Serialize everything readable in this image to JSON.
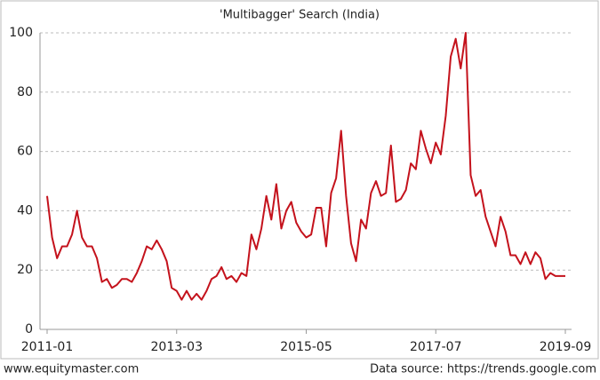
{
  "chart_data": {
    "type": "line",
    "title": "'Multibagger' Search (India)",
    "footer_left": "www.equitymaster.com",
    "footer_right": "Data source: https://trends.google.com",
    "categories": [
      "2011-01",
      null,
      null,
      null,
      null,
      null,
      null,
      null,
      null,
      null,
      null,
      null,
      null,
      null,
      null,
      null,
      null,
      null,
      null,
      null,
      null,
      null,
      null,
      null,
      null,
      null,
      "2013-03",
      null,
      null,
      null,
      null,
      null,
      null,
      null,
      null,
      null,
      null,
      null,
      null,
      null,
      null,
      null,
      null,
      null,
      null,
      null,
      null,
      null,
      null,
      null,
      null,
      null,
      "2015-05",
      null,
      null,
      null,
      null,
      null,
      null,
      null,
      null,
      null,
      null,
      null,
      null,
      null,
      null,
      null,
      null,
      null,
      null,
      null,
      null,
      null,
      null,
      null,
      null,
      null,
      "2017-07",
      null,
      null,
      null,
      null,
      null,
      null,
      null,
      null,
      null,
      null,
      null,
      null,
      null,
      null,
      null,
      null,
      null,
      null,
      null,
      null,
      null,
      null,
      null,
      null,
      null,
      "2019-09"
    ],
    "values": [
      45,
      31,
      24,
      28,
      28,
      32,
      40,
      31,
      28,
      28,
      24,
      16,
      17,
      14,
      15,
      17,
      17,
      16,
      19,
      23,
      28,
      27,
      30,
      27,
      23,
      14,
      13,
      10,
      13,
      10,
      12,
      10,
      13,
      17,
      18,
      21,
      17,
      18,
      16,
      19,
      18,
      32,
      27,
      34,
      45,
      37,
      49,
      34,
      40,
      43,
      36,
      33,
      31,
      32,
      41,
      41,
      28,
      46,
      51,
      67,
      45,
      29,
      23,
      37,
      34,
      46,
      50,
      45,
      46,
      62,
      43,
      44,
      47,
      56,
      54,
      67,
      61,
      56,
      63,
      59,
      72,
      92,
      98,
      88,
      100,
      52,
      45,
      47,
      38,
      33,
      28,
      38,
      33,
      25,
      25,
      22,
      26,
      22,
      26,
      24,
      17,
      19,
      18,
      18,
      18
    ],
    "color": "#c4121c",
    "ylim": [
      0,
      100
    ],
    "yticks": [
      0,
      20,
      40,
      60,
      80,
      100
    ],
    "grid": true
  }
}
